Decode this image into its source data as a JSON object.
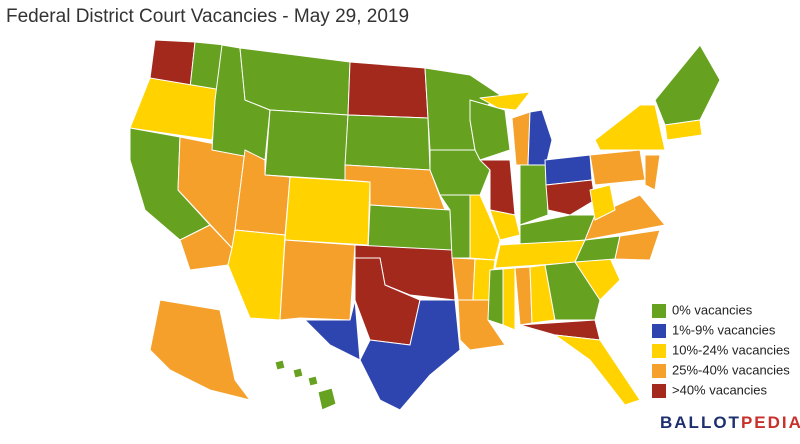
{
  "title": "Federal District Court Vacancies - May 29, 2019",
  "legend": [
    {
      "label": "0% vacancies",
      "color": "#66a11f"
    },
    {
      "label": "1%-9% vacancies",
      "color": "#2e45b0"
    },
    {
      "label": "10%-24% vacancies",
      "color": "#ffd200"
    },
    {
      "label": "25%-40% vacancies",
      "color": "#f5a02a"
    },
    {
      "label": ">40% vacancies",
      "color": "#a3291c"
    }
  ],
  "logo": {
    "first": "BALLOT",
    "second": "PEDIA",
    "first_color": "#1c2f6e",
    "second_color": "#c8312b"
  }
}
